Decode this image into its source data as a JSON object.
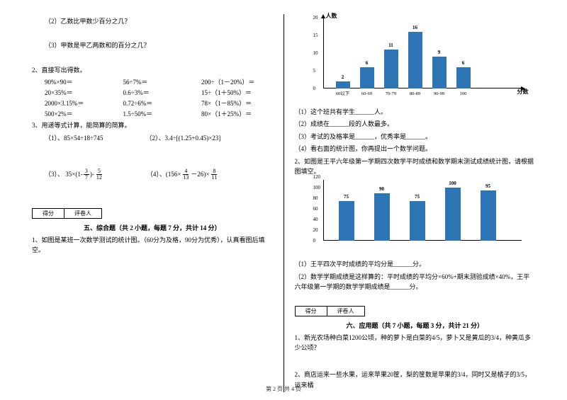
{
  "left": {
    "q12": "（2）乙数比甲数少百分之几？",
    "q13": "（3）甲数是甲乙两数和的百分之几？",
    "q2title": "2、直接写出得数。",
    "calc_rows": [
      [
        "90%×90＝",
        "56÷7%＝",
        "200÷（1－20%）＝"
      ],
      [
        "20×35%＝",
        "0.6÷3%＝",
        "15÷（1＋50%）＝"
      ],
      [
        "2000×3.15%＝",
        "0.72÷6%＝",
        "78×（1－85%）＝"
      ],
      [
        "500×2%＝",
        "1.5÷50%＝",
        "80×（1＋25%）＝"
      ]
    ],
    "q3title": "3、用递等式计算，能简算的简算。",
    "q31a": "（1）、85×54÷18÷745",
    "q31b": "（2）、3.4÷[(1.25+0.45)×23]",
    "q33_pre": "（3）、 35×(1-",
    "q33_f1n": "3",
    "q33_f1d": "7",
    "q33_mid": ")-",
    "q33_f2n": "5",
    "q33_f2d": "12",
    "q34_pre": "（4）、(156×",
    "q34_f1n": "4",
    "q34_f1d": "13",
    "q34_mid": "－26)×",
    "q34_f2n": "8",
    "q34_f2d": "11",
    "score1": "得分",
    "score2": "评卷人",
    "sec5": "五、综合题（共 2 小题，每题 7 分，共计 14 分）",
    "q5_1": "1、如图是某班一次数学测试的统计图。（60分为及格，90分为优秀），认真看图后填空。"
  },
  "right": {
    "chart1": {
      "ylabel": "人数",
      "xlabel": "分数",
      "ymax": 20,
      "ytick_step": 5,
      "height": 100,
      "cats": [
        "60以下",
        "60-69",
        "70-79",
        "80-89",
        "90-99",
        "100"
      ],
      "vals": [
        2,
        6,
        11,
        16,
        9,
        6
      ],
      "bar_color": "#2e75b6"
    },
    "c1_q1": "（1）这个班共有学生______人。",
    "c1_q2": "（2）成绩在______段的人数最多。",
    "c1_q3": "（3）考试的及格率是______，优秀率是______。",
    "c1_q4": "（4）看右面的统计图，你再提出一个数学问题。",
    "q2": "2、如图是王平六年级第一学期四次数学平时成绩和数学期末测试成绩统计图，请根据图填空。",
    "chart2": {
      "ymax": 120,
      "ytick_step": 20,
      "height": 90,
      "cats": [
        "",
        "",
        "",
        "",
        ""
      ],
      "vals": [
        75,
        90,
        75,
        100,
        95
      ],
      "bar_color": "#2e75b6"
    },
    "c2_q1": "（1）王平四次平时成绩的平均分是______分。",
    "c2_q2": "（2）数学学期成绩是这样算的：平时成绩的平均分×60%+期末测验成绩×40%，王平六年级第一学期的数学学期成绩是______分。",
    "score1": "得分",
    "score2": "评卷人",
    "sec6": "六、应用题（共 7 小题，每题 3 分，共计 21 分）",
    "q6_1": "1、新光农场种白菜1200公顷，种的萝卜是白菜的4/5，萝卜又是黄瓜的3/4，种黄瓜多少公顷？",
    "q6_2": "2、商店运来一些水果，运来苹果20筐，梨的筐数是苹果的3/4，同时又是橘子的3/5，运来橘"
  },
  "footer": "第 2 页 共 4 页"
}
